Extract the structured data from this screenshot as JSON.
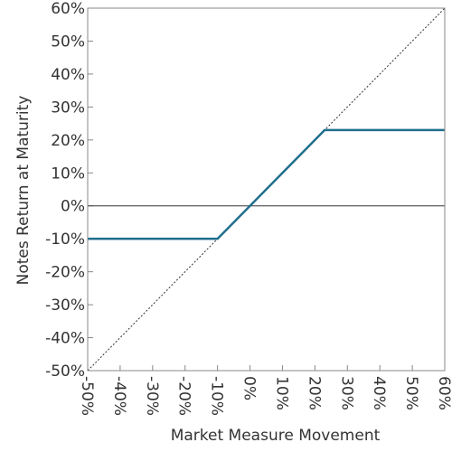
{
  "chart_data": {
    "type": "line",
    "title": "",
    "xlabel": "Market Measure Movement",
    "ylabel": "Notes Return at Maturity",
    "xlim": [
      -50,
      60
    ],
    "ylim": [
      -50,
      60
    ],
    "x_ticks": [
      -50,
      -40,
      -30,
      -20,
      -10,
      0,
      10,
      20,
      30,
      40,
      50,
      60
    ],
    "y_ticks": [
      -50,
      -40,
      -30,
      -20,
      -10,
      0,
      10,
      20,
      30,
      40,
      50,
      60
    ],
    "x_tick_labels": [
      "-50%",
      "-40%",
      "-30%",
      "-20%",
      "-10%",
      "0%",
      "10%",
      "20%",
      "30%",
      "40%",
      "50%",
      "60%"
    ],
    "y_tick_labels": [
      "-50%",
      "-40%",
      "-30%",
      "-20%",
      "-10%",
      "0%",
      "10%",
      "20%",
      "30%",
      "40%",
      "50%",
      "60%"
    ],
    "grid": false,
    "series": [
      {
        "style": "solid",
        "color": "#1f6e8c",
        "x": [
          -50,
          -10,
          23,
          60
        ],
        "y": [
          -10,
          -10,
          23,
          23
        ]
      },
      {
        "style": "dotted",
        "color": "#333333",
        "x": [
          -50,
          60
        ],
        "y": [
          -50,
          60
        ]
      }
    ],
    "reference_lines": [
      {
        "axis": "y",
        "value": 0,
        "color": "#333333"
      }
    ]
  }
}
